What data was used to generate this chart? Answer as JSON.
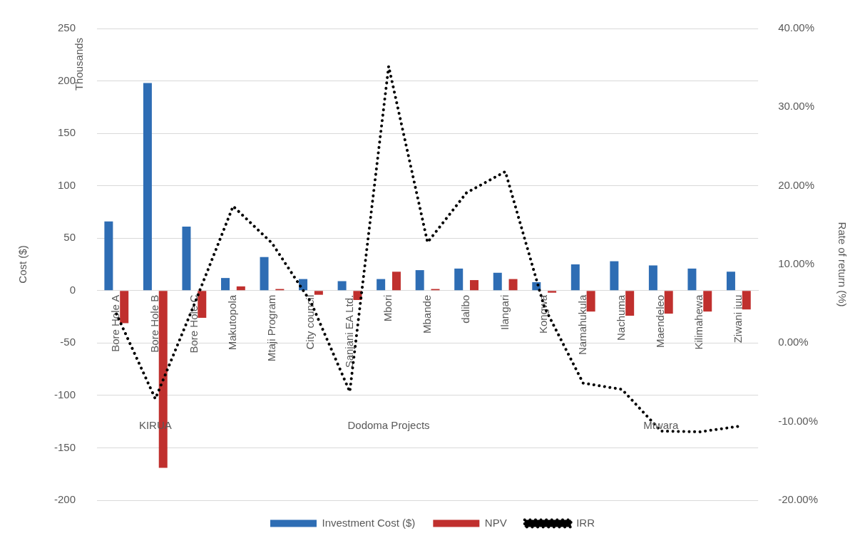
{
  "chart_data": {
    "type": "bar",
    "ylabel": "Cost ($)",
    "y2label": "Rate of return (%)",
    "categories": [
      "Bore Hole A",
      "Bore Hole B",
      "Bore Hole C",
      "Makutopola",
      "Mtaji Program",
      "City council",
      "Sanjani EA Ltd.",
      "Mbori",
      "Mbande",
      "dalibo",
      "Ilangari",
      "Kongwa",
      "Namahukula",
      "Nachuma",
      "Maendeleo",
      "Kilimahewa",
      "Ziwani juu"
    ],
    "series": [
      {
        "name": "Investment Cost ($)",
        "type": "bar",
        "color": "#2e6db4",
        "values": [
          66,
          198,
          61,
          12,
          32,
          11,
          9,
          11,
          19.5,
          21,
          17,
          8,
          25,
          28,
          24,
          21,
          18
        ]
      },
      {
        "name": "NPV",
        "type": "bar",
        "color": "#c0302e",
        "values": [
          -31,
          -169,
          -26,
          4,
          1.5,
          -4,
          -9,
          18,
          1.5,
          10,
          11,
          -2,
          -20,
          -24,
          -22,
          -20,
          -18
        ]
      },
      {
        "name": "IRR",
        "type": "line",
        "axis": "y2",
        "color": "#000000",
        "line_style": "dotted",
        "marker": "none",
        "values": [
          3.7,
          -7.1,
          4.9,
          17.4,
          12.7,
          5.2,
          -6.2,
          35.2,
          12.8,
          19.1,
          21.8,
          4.6,
          -5.1,
          -5.9,
          -11.2,
          -11.3,
          -10.6
        ]
      }
    ],
    "ylim": [
      -200,
      250
    ],
    "yticks": [
      -200,
      -150,
      -100,
      -50,
      0,
      50,
      100,
      150,
      200,
      250
    ],
    "y2lim": [
      -20,
      40
    ],
    "y2ticks": [
      {
        "value": -20,
        "label": "-20.00%"
      },
      {
        "value": -10,
        "label": "-10.00%"
      },
      {
        "value": 0,
        "label": "0.00%"
      },
      {
        "value": 10,
        "label": "10.00%"
      },
      {
        "value": 20,
        "label": "20.00%"
      },
      {
        "value": 30,
        "label": "30.00%"
      },
      {
        "value": 40,
        "label": "40.00%"
      }
    ],
    "grid": "y",
    "legend": "bottom",
    "annotations": [
      "Thousands",
      "KIRUA",
      "Dodoma Projects",
      "Mtwara"
    ]
  }
}
